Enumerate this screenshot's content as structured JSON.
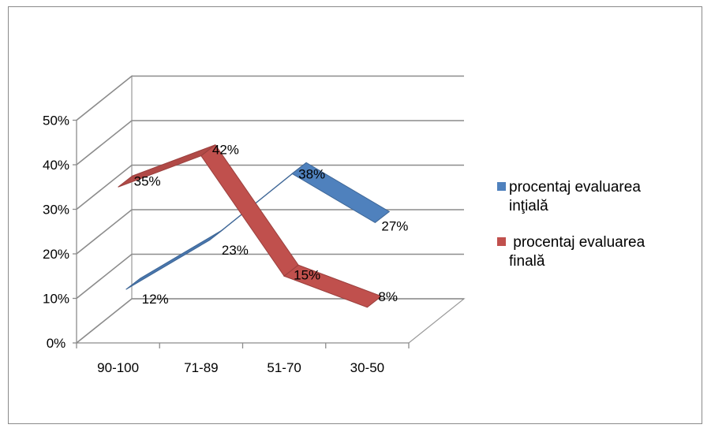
{
  "chart_data": {
    "type": "line",
    "title": "",
    "xlabel": "",
    "ylabel": "",
    "categories": [
      "90-100",
      "71-89",
      "51-70",
      "30-50"
    ],
    "y_ticks": [
      "0%",
      "10%",
      "20%",
      "30%",
      "40%",
      "50%"
    ],
    "ylim": [
      0,
      50
    ],
    "grid": true,
    "legend_position": "right",
    "series": [
      {
        "name": "procentaj evaluarea inţială",
        "legend_lines": [
          "procentaj evaluarea",
          "inţială"
        ],
        "values": [
          12,
          23,
          38,
          27
        ],
        "labels": [
          "12%",
          "23%",
          "38%",
          "27%"
        ],
        "color": "#4f81bd"
      },
      {
        "name": " procentaj evaluarea finală",
        "legend_lines": [
          " procentaj evaluarea",
          "finală"
        ],
        "values": [
          35,
          42,
          15,
          8
        ],
        "labels": [
          "35%",
          "42%",
          "15%",
          "8%"
        ],
        "color": "#c0504d"
      }
    ]
  }
}
